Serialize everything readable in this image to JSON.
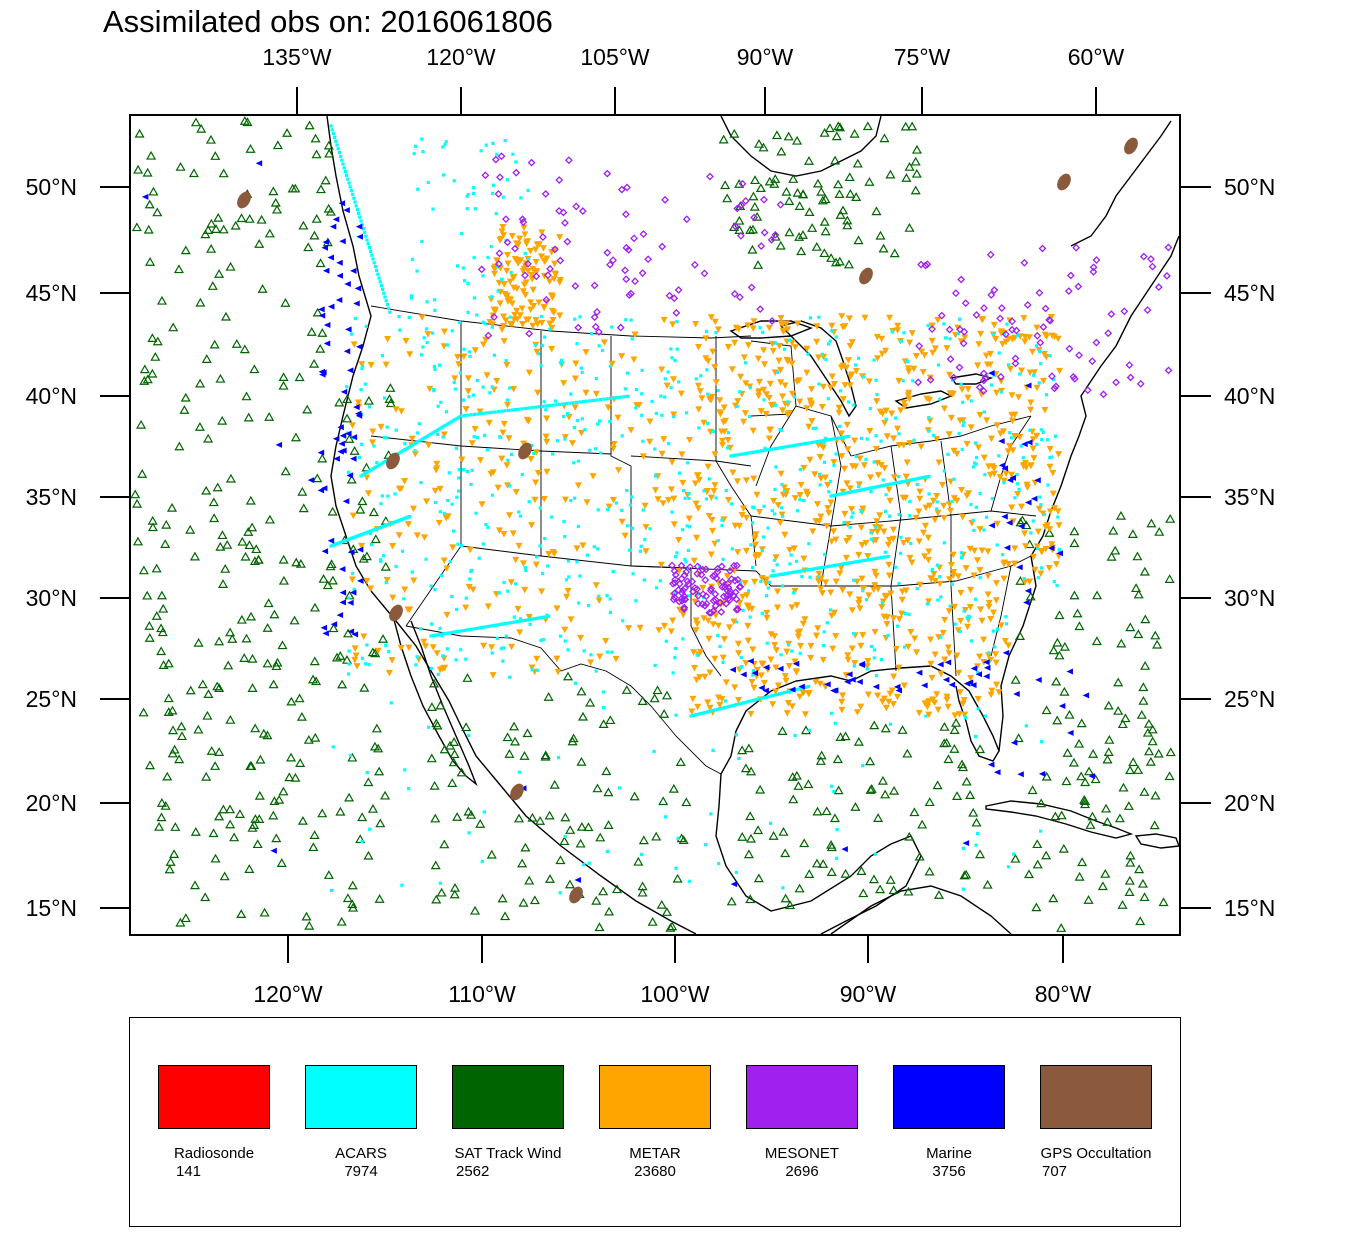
{
  "title": "Assimilated obs on: 2016061806",
  "axes": {
    "top_lon_labels": [
      "135°W",
      "120°W",
      "105°W",
      "90°W",
      "75°W",
      "60°W"
    ],
    "bottom_lon_labels": [
      "120°W",
      "110°W",
      "100°W",
      "90°W",
      "80°W"
    ],
    "left_lat_labels": [
      "50°N",
      "45°N",
      "40°N",
      "35°N",
      "30°N",
      "25°N",
      "20°N",
      "15°N"
    ],
    "right_lat_labels": [
      "50°N",
      "45°N",
      "40°N",
      "35°N",
      "30°N",
      "25°N",
      "20°N",
      "15°N"
    ]
  },
  "legend": [
    {
      "name": "Radiosonde",
      "count": "141",
      "color": "#ff0000",
      "icon": "dot-marker"
    },
    {
      "name": "ACARS",
      "count": "7974",
      "color": "#00ffff",
      "icon": "dot-marker"
    },
    {
      "name": "SAT Track Wind",
      "count": "2562",
      "color": "#006400",
      "icon": "triangle-up-marker"
    },
    {
      "name": "METAR",
      "count": "23680",
      "color": "#ffa500",
      "icon": "triangle-down-marker"
    },
    {
      "name": "MESONET",
      "count": "2696",
      "color": "#a020f0",
      "icon": "diamond-marker"
    },
    {
      "name": "Marine",
      "count": "3756",
      "color": "#0000ff",
      "icon": "triangle-left-marker"
    },
    {
      "name": "GPS Occultation",
      "count": "707",
      "color": "#8b5a3c",
      "icon": "blob-marker"
    }
  ],
  "map": {
    "region": "CONUS, southern Canada, Mexico, Gulf of Mexico, Caribbean",
    "projection": "Lambert Conformal",
    "lat_range": [
      14,
      53
    ],
    "lon_range": [
      -128,
      -73
    ],
    "coastline_color": "#000000",
    "state_borders": true
  }
}
